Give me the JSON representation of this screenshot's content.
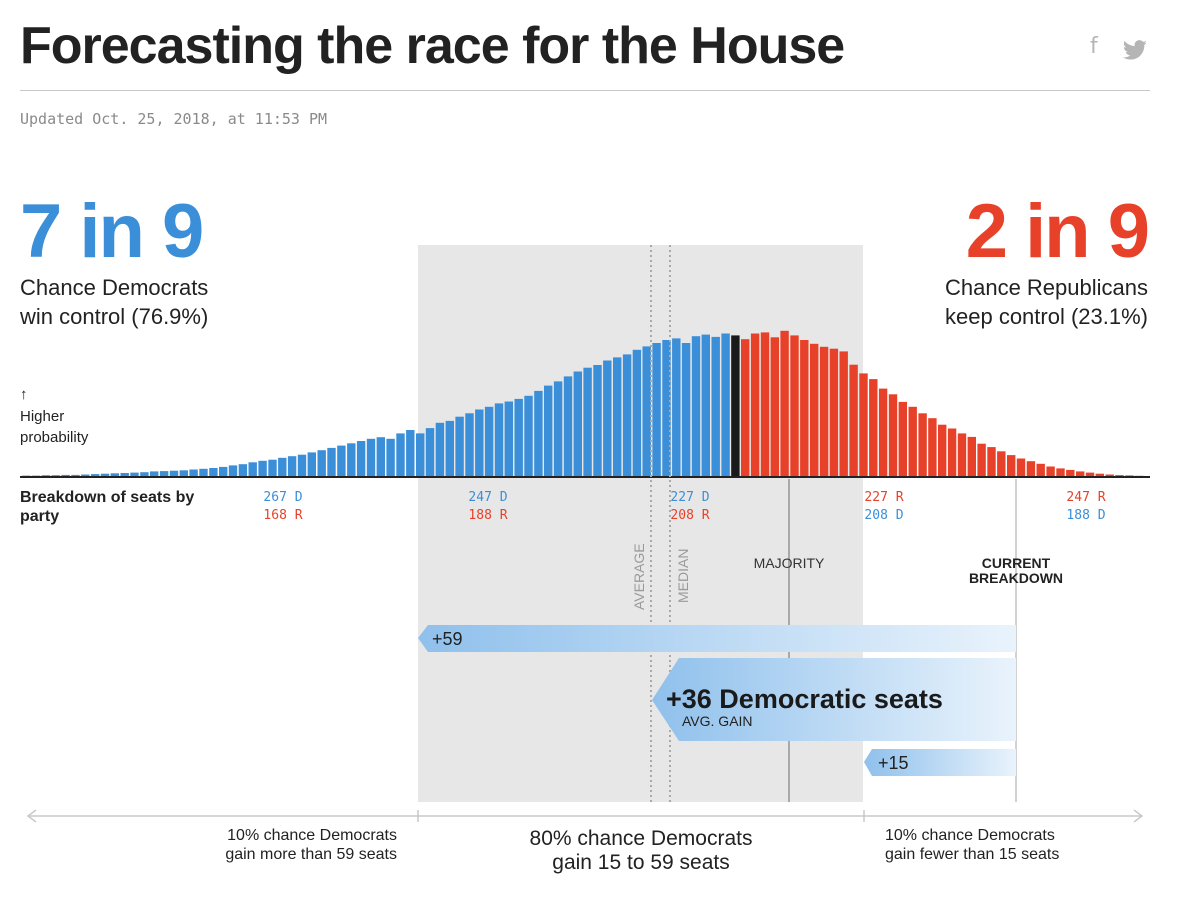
{
  "header": {
    "title": "Forecasting the race for the House",
    "updated": "Updated Oct. 25, 2018, at 11:53 PM",
    "share_icons": [
      "facebook-icon",
      "twitter-icon"
    ],
    "facebook_glyph": "f"
  },
  "dem": {
    "odds": "7 in 9",
    "line1": "Chance Democrats",
    "line2": "win control (76.9%)",
    "color": "#3b8ed8"
  },
  "rep": {
    "odds": "2 in 9",
    "line1": "Chance Republicans",
    "line2": "keep control (23.1%)",
    "color": "#e8412a"
  },
  "chart_data": {
    "type": "bar",
    "x_label": "Breakdown of seats by party",
    "y_label": "↑ Higher probability",
    "tick_labels": [
      {
        "dem": "267 D",
        "rep": "168 R",
        "rep_first": false
      },
      {
        "dem": "247 D",
        "rep": "188 R",
        "rep_first": false
      },
      {
        "dem": "227 D",
        "rep": "208 R",
        "rep_first": false
      },
      {
        "dem": "208 D",
        "rep": "227 R",
        "rep_first": true
      },
      {
        "dem": "188 D",
        "rep": "247 R",
        "rep_first": true
      }
    ],
    "dem_seats_start": 290,
    "dem_seats_end": 191,
    "majority_dem_seats": 218,
    "values": [
      0.1,
      0.1,
      0.2,
      0.2,
      0.3,
      0.3,
      0.4,
      0.5,
      0.6,
      0.7,
      0.8,
      0.9,
      1.0,
      1.2,
      1.3,
      1.4,
      1.5,
      1.7,
      1.9,
      2.1,
      2.4,
      2.8,
      3.1,
      3.6,
      4.0,
      4.3,
      4.8,
      5.2,
      5.6,
      6.2,
      6.8,
      7.4,
      8.0,
      8.6,
      9.2,
      9.8,
      10.2,
      9.8,
      11.2,
      12.1,
      11.2,
      12.6,
      14.0,
      14.5,
      15.6,
      16.5,
      17.5,
      18.2,
      19.1,
      19.6,
      20.3,
      21.1,
      22.4,
      23.8,
      24.9,
      26.2,
      27.5,
      28.5,
      29.2,
      30.4,
      31.2,
      32.0,
      33.2,
      34.1,
      35.0,
      35.8,
      36.2,
      35.0,
      36.8,
      37.2,
      36.6,
      37.5,
      37.0,
      36.0,
      37.5,
      37.8,
      36.5,
      38.2,
      37.0,
      35.8,
      34.8,
      34.0,
      33.5,
      32.8,
      29.3,
      27.0,
      25.5,
      23.0,
      21.5,
      19.5,
      18.2,
      16.5,
      15.2,
      13.5,
      12.5,
      11.2,
      10.3,
      8.5,
      7.6,
      6.5,
      5.5,
      4.6,
      3.9,
      3.2,
      2.5,
      2.0,
      1.6,
      1.2,
      0.9,
      0.6,
      0.4,
      0.25,
      0.15,
      0.05
    ],
    "markers": {
      "average": "AVERAGE",
      "median": "MEDIAN",
      "majority": "MAJORITY",
      "current": "CURRENT BREAKDOWN"
    },
    "gains": {
      "high": "+59",
      "avg_value": "+36 Democratic seats",
      "avg_label": "AVG. GAIN",
      "low": "+15"
    },
    "ranges": {
      "left_line1": "10% chance Democrats",
      "left_line2": "gain more than 59 seats",
      "mid_line1": "80% chance Democrats",
      "mid_line2": "gain 15 to 59 seats",
      "right_line1": "10% chance Democrats",
      "right_line2": "gain fewer than 15 seats"
    }
  }
}
